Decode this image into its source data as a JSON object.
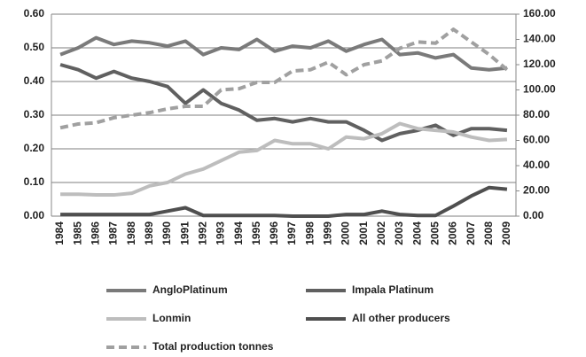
{
  "chart_data": {
    "type": "line",
    "categories": [
      "1984",
      "1985",
      "1986",
      "1987",
      "1988",
      "1989",
      "1990",
      "1991",
      "1992",
      "1993",
      "1994",
      "1995",
      "1996",
      "1997",
      "1998",
      "1999",
      "2000",
      "2001",
      "2002",
      "2003",
      "2004",
      "2005",
      "2006",
      "2007",
      "2008",
      "2009"
    ],
    "series": [
      {
        "name": "AngloPlatinum",
        "color": "#7a7a7a",
        "values": [
          0.48,
          0.5,
          0.53,
          0.51,
          0.52,
          0.515,
          0.505,
          0.52,
          0.48,
          0.5,
          0.495,
          0.525,
          0.49,
          0.505,
          0.5,
          0.52,
          0.49,
          0.51,
          0.525,
          0.48,
          0.485,
          0.47,
          0.48,
          0.44,
          0.435,
          0.44
        ]
      },
      {
        "name": "Impala Platinum",
        "color": "#606060",
        "values": [
          0.45,
          0.435,
          0.41,
          0.43,
          0.41,
          0.4,
          0.385,
          0.335,
          0.375,
          0.335,
          0.315,
          0.285,
          0.29,
          0.28,
          0.29,
          0.28,
          0.28,
          0.255,
          0.225,
          0.245,
          0.255,
          0.27,
          0.24,
          0.26,
          0.26,
          0.255
        ]
      },
      {
        "name": "Lonmin",
        "color": "#bdbdbd",
        "values": [
          0.065,
          0.065,
          0.063,
          0.063,
          0.068,
          0.09,
          0.1,
          0.125,
          0.14,
          0.165,
          0.19,
          0.195,
          0.225,
          0.215,
          0.215,
          0.2,
          0.235,
          0.23,
          0.245,
          0.275,
          0.26,
          0.255,
          0.25,
          0.235,
          0.225,
          0.228
        ]
      },
      {
        "name": "All other producers",
        "color": "#4f4f4f",
        "values": [
          0.005,
          0.005,
          0.005,
          0.005,
          0.005,
          0.005,
          0.015,
          0.025,
          0.002,
          0.002,
          0.002,
          0.002,
          0.002,
          0,
          0,
          0,
          0.005,
          0.005,
          0.015,
          0.005,
          0.002,
          0.002,
          0.03,
          0.06,
          0.085,
          0.08
        ]
      },
      {
        "name": "Total production tonnes",
        "color": "#a0a0a0",
        "style": "dashed",
        "axis": "y2",
        "values": [
          70,
          73,
          74,
          78,
          80,
          82,
          85,
          87,
          87,
          100,
          101,
          106,
          106,
          115,
          116,
          122,
          112,
          120,
          123,
          133,
          138,
          137,
          148,
          138,
          128,
          116
        ]
      }
    ],
    "ylim": [
      0,
      0.6
    ],
    "yticks": [
      {
        "value": 0,
        "label": "0.00"
      },
      {
        "value": 0.1,
        "label": "0.10"
      },
      {
        "value": 0.2,
        "label": "0.20"
      },
      {
        "value": 0.3,
        "label": "0.30"
      },
      {
        "value": 0.4,
        "label": "0.40"
      },
      {
        "value": 0.5,
        "label": "0.50"
      },
      {
        "value": 0.6,
        "label": "0.60"
      }
    ],
    "y2lim": [
      0,
      160
    ],
    "y2ticks": [
      {
        "value": 0,
        "label": "0.00"
      },
      {
        "value": 20,
        "label": "20.00"
      },
      {
        "value": 40,
        "label": "40.00"
      },
      {
        "value": 60,
        "label": "60.00"
      },
      {
        "value": 80,
        "label": "80.00"
      },
      {
        "value": 100,
        "label": "100.00"
      },
      {
        "value": 120,
        "label": "120.00"
      },
      {
        "value": 140,
        "label": "140.00"
      },
      {
        "value": 160,
        "label": "160.00"
      }
    ],
    "grid": true
  }
}
